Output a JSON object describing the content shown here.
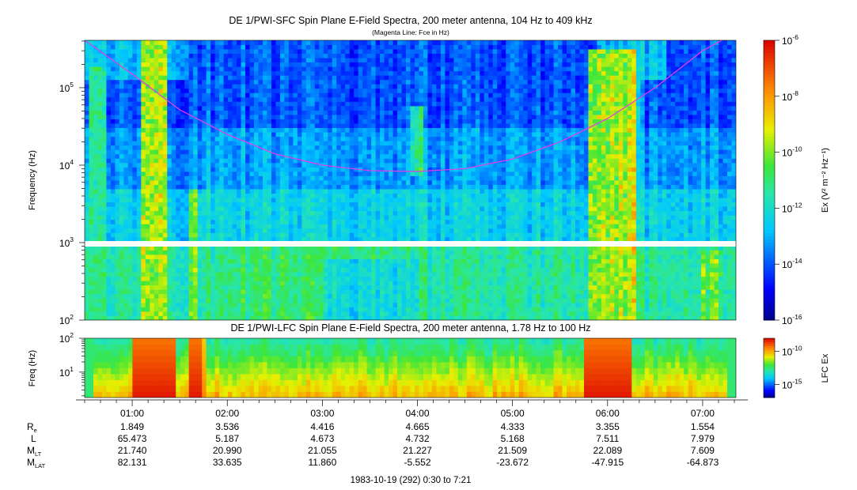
{
  "chart_data": [
    {
      "type": "heatmap",
      "title": "DE 1/PWI-SFC  Spin Plane E-Field Spectra, 200 meter antenna, 104 Hz to 409 kHz",
      "subtitle": "(Magenta Line: Fce in Hz)",
      "ylabel": "Frequency (Hz)",
      "y_scale": "log",
      "ylim": [
        100,
        409000
      ],
      "y_tick_labels": [
        {
          "v": 100,
          "base": "10",
          "exp": "2"
        },
        {
          "v": 1000,
          "base": "10",
          "exp": "3"
        },
        {
          "v": 10000,
          "base": "10",
          "exp": "4"
        },
        {
          "v": 100000,
          "base": "10",
          "exp": "5"
        }
      ],
      "data_gap_hz": [
        900,
        1030
      ],
      "colorbar": {
        "label": "Ex (V² m⁻² Hz⁻¹)",
        "scale": "log",
        "range": [
          1e-16,
          1e-06
        ],
        "tick_labels": [
          {
            "v": -6,
            "base": "10",
            "exp": "-6"
          },
          {
            "v": -8,
            "base": "10",
            "exp": "-8"
          },
          {
            "v": -10,
            "base": "10",
            "exp": "-10"
          },
          {
            "v": -12,
            "base": "10",
            "exp": "-12"
          },
          {
            "v": -14,
            "base": "10",
            "exp": "-14"
          },
          {
            "v": -16,
            "base": "10",
            "exp": "-16"
          }
        ]
      },
      "fce_line": {
        "color": "#e040e0",
        "time_hr": [
          0.5,
          1.0,
          1.5,
          2.0,
          2.5,
          3.0,
          3.5,
          4.0,
          4.5,
          5.0,
          5.5,
          6.0,
          6.5,
          7.0,
          7.2
        ],
        "freq_hz": [
          409000,
          150000,
          52000,
          25000,
          14000,
          10000,
          8500,
          8300,
          9000,
          12000,
          20000,
          40000,
          100000,
          300000,
          409000
        ]
      },
      "features": [
        {
          "time_hr": [
            0.55,
            0.7
          ],
          "freq_hz": [
            200,
            200000
          ],
          "intensity": 1e-12
        },
        {
          "time_hr": [
            1.1,
            1.35
          ],
          "freq_hz": [
            100,
            400000
          ],
          "intensity": 1e-10
        },
        {
          "time_hr": [
            1.6,
            1.7
          ],
          "freq_hz": [
            100,
            5000
          ],
          "intensity": 1e-11
        },
        {
          "time_hr": [
            3.95,
            4.05
          ],
          "freq_hz": [
            7000,
            60000
          ],
          "intensity": 1e-12
        },
        {
          "time_hr": [
            5.8,
            6.3
          ],
          "freq_hz": [
            100,
            300000
          ],
          "intensity": 1e-10
        },
        {
          "time_hr": [
            7.0,
            7.2
          ],
          "freq_hz": [
            100,
            800
          ],
          "intensity": 1e-11
        }
      ]
    },
    {
      "type": "heatmap",
      "title": "DE 1/PWI-LFC  Spin Plane E-Field Spectra, 200 meter antenna, 1.78 Hz to 100 Hz",
      "ylabel": "Freq (Hz)",
      "y_scale": "log",
      "ylim": [
        1.78,
        100
      ],
      "y_tick_labels": [
        {
          "v": 10,
          "base": "10",
          "exp": "1"
        },
        {
          "v": 100,
          "base": "10",
          "exp": "2"
        }
      ],
      "colorbar": {
        "label": "LFC Ex",
        "scale": "log",
        "tick_labels": [
          {
            "v": -10,
            "base": "10",
            "exp": "-10"
          },
          {
            "v": -15,
            "base": "10",
            "exp": "-15"
          }
        ]
      },
      "features": [
        {
          "time_hr": [
            1.0,
            1.45
          ],
          "freq_hz": [
            1.78,
            100
          ],
          "intensity": "high"
        },
        {
          "time_hr": [
            1.6,
            1.75
          ],
          "freq_hz": [
            1.78,
            100
          ],
          "intensity": "high"
        },
        {
          "time_hr": [
            5.75,
            6.25
          ],
          "freq_hz": [
            1.78,
            100
          ],
          "intensity": "high"
        }
      ]
    }
  ],
  "x_axis": {
    "tick_labels": [
      "01:00",
      "02:00",
      "03:00",
      "04:00",
      "05:00",
      "06:00",
      "07:00"
    ],
    "tick_hours": [
      1,
      2,
      3,
      4,
      5,
      6,
      7
    ],
    "range_hours": [
      0.5,
      7.35
    ]
  },
  "ephemeris": {
    "rows": [
      {
        "label": "R",
        "sub": "e",
        "values": [
          "1.849",
          "3.536",
          "4.416",
          "4.665",
          "4.333",
          "3.355",
          "1.554"
        ]
      },
      {
        "label": "L",
        "sub": "",
        "values": [
          "65.473",
          "5.187",
          "4.673",
          "4.732",
          "5.168",
          "7.511",
          "7.979"
        ]
      },
      {
        "label": "M",
        "sub": "LT",
        "values": [
          "21.740",
          "20.990",
          "21.055",
          "21.227",
          "21.509",
          "22.089",
          "7.609"
        ]
      },
      {
        "label": "M",
        "sub": "LAT",
        "values": [
          "82.131",
          "33.635",
          "11.860",
          "-5.552",
          "-23.672",
          "-47.915",
          "-64.873"
        ]
      }
    ]
  },
  "footer": "1983-10-19 (292) 0:30 to 7:21"
}
